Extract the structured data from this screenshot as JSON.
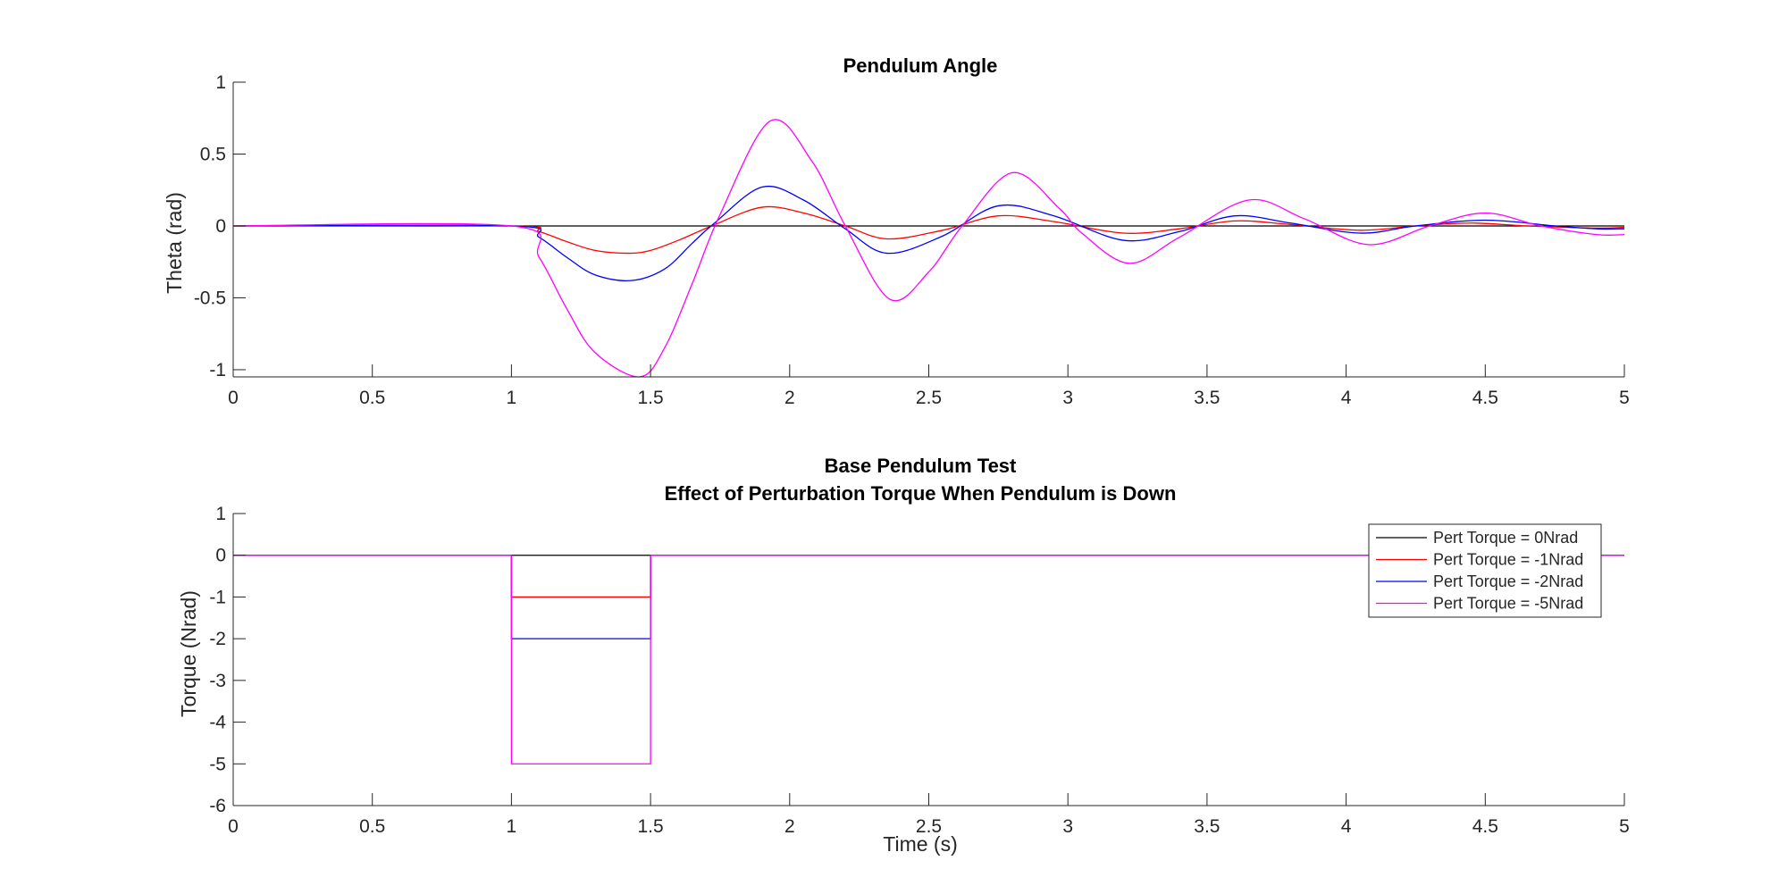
{
  "chart_data": [
    {
      "type": "line",
      "title": "Pendulum Angle",
      "xlabel": "",
      "ylabel": "Theta (rad)",
      "xlim": [
        0,
        5
      ],
      "ylim": [
        -1.05,
        1
      ],
      "xticks": [
        "0",
        "0.5",
        "1",
        "1.5",
        "2",
        "2.5",
        "3",
        "3.5",
        "4",
        "4.5",
        "5"
      ],
      "yticks": [
        "1",
        "0.5",
        "0",
        "-0.5",
        "-1"
      ],
      "grid": false,
      "series": [
        {
          "name": "Pert Torque = 0Nrad",
          "color": "#000000",
          "x": [
            0,
            1,
            5
          ],
          "y": [
            0,
            0,
            0
          ]
        },
        {
          "name": "Pert Torque = -1Nrad",
          "color": "#ff0000",
          "x": [
            0,
            1.0,
            1.1,
            1.2,
            1.3,
            1.42,
            1.5,
            1.6,
            1.72,
            1.9,
            2.05,
            2.2,
            2.35,
            2.55,
            2.75,
            2.95,
            3.2,
            3.4,
            3.6,
            3.8,
            4.05,
            4.25,
            4.45,
            4.65,
            4.9,
            5.0
          ],
          "y": [
            0,
            0,
            -0.04,
            -0.11,
            -0.17,
            -0.19,
            -0.17,
            -0.1,
            0.0,
            0.13,
            0.09,
            0.0,
            -0.09,
            -0.03,
            0.07,
            0.03,
            -0.05,
            -0.02,
            0.035,
            0.01,
            -0.03,
            0.0,
            0.02,
            0.0,
            -0.015,
            -0.01
          ]
        },
        {
          "name": "Pert Torque = -2Nrad",
          "color": "#0000ff",
          "x": [
            0,
            1.0,
            1.1,
            1.2,
            1.3,
            1.43,
            1.55,
            1.65,
            1.73,
            1.9,
            2.05,
            2.2,
            2.35,
            2.55,
            2.75,
            2.95,
            3.2,
            3.4,
            3.6,
            3.8,
            4.05,
            4.25,
            4.5,
            4.75,
            4.9,
            5.0
          ],
          "y": [
            0,
            0,
            -0.08,
            -0.22,
            -0.34,
            -0.38,
            -0.3,
            -0.12,
            0.02,
            0.27,
            0.18,
            -0.02,
            -0.19,
            -0.07,
            0.14,
            0.07,
            -0.1,
            -0.04,
            0.07,
            0.02,
            -0.05,
            0.0,
            0.04,
            0.0,
            -0.02,
            -0.02
          ]
        },
        {
          "name": "Pert Torque = -5Nrad",
          "color": "#ff00ff",
          "x": [
            0,
            1.0,
            1.1,
            1.2,
            1.3,
            1.46,
            1.55,
            1.65,
            1.75,
            1.93,
            2.08,
            2.2,
            2.36,
            2.5,
            2.62,
            2.8,
            2.97,
            3.05,
            3.22,
            3.4,
            3.65,
            3.85,
            4.08,
            4.3,
            4.5,
            4.7,
            4.9,
            5.0
          ],
          "y": [
            0,
            0,
            -0.22,
            -0.58,
            -0.88,
            -1.05,
            -0.85,
            -0.4,
            0.08,
            0.73,
            0.45,
            0.0,
            -0.51,
            -0.32,
            0.0,
            0.37,
            0.12,
            -0.05,
            -0.26,
            -0.08,
            0.18,
            0.05,
            -0.13,
            0.0,
            0.09,
            0.0,
            -0.06,
            -0.06
          ]
        }
      ]
    },
    {
      "type": "line",
      "title": "Base Pendulum Test",
      "subtitle": "Effect of Perturbation Torque When Pendulum is Down",
      "xlabel": "Time (s)",
      "ylabel": "Torque (Nrad)",
      "xlim": [
        0,
        5
      ],
      "ylim": [
        -6,
        1
      ],
      "xticks": [
        "0",
        "0.5",
        "1",
        "1.5",
        "2",
        "2.5",
        "3",
        "3.5",
        "4",
        "4.5",
        "5"
      ],
      "yticks": [
        "1",
        "0",
        "-1",
        "-2",
        "-3",
        "-4",
        "-5",
        "-6"
      ],
      "grid": false,
      "legend": "top-right",
      "series": [
        {
          "name": "Pert Torque = 0Nrad",
          "color": "#000000",
          "x": [
            0,
            1,
            1,
            1.5,
            1.5,
            5
          ],
          "y": [
            0,
            0,
            0,
            0,
            0,
            0
          ]
        },
        {
          "name": "Pert Torque = -1Nrad",
          "color": "#ff0000",
          "x": [
            0,
            1,
            1,
            1.5,
            1.5,
            5
          ],
          "y": [
            0,
            0,
            -1,
            -1,
            0,
            0
          ]
        },
        {
          "name": "Pert Torque = -2Nrad",
          "color": "#0000ff",
          "x": [
            0,
            1,
            1,
            1.5,
            1.5,
            5
          ],
          "y": [
            0,
            0,
            -2,
            -2,
            0,
            0
          ]
        },
        {
          "name": "Pert Torque = -5Nrad",
          "color": "#ff00ff",
          "x": [
            0,
            1,
            1,
            1.5,
            1.5,
            5
          ],
          "y": [
            0,
            0,
            -5,
            -5,
            0,
            0
          ]
        }
      ]
    }
  ]
}
